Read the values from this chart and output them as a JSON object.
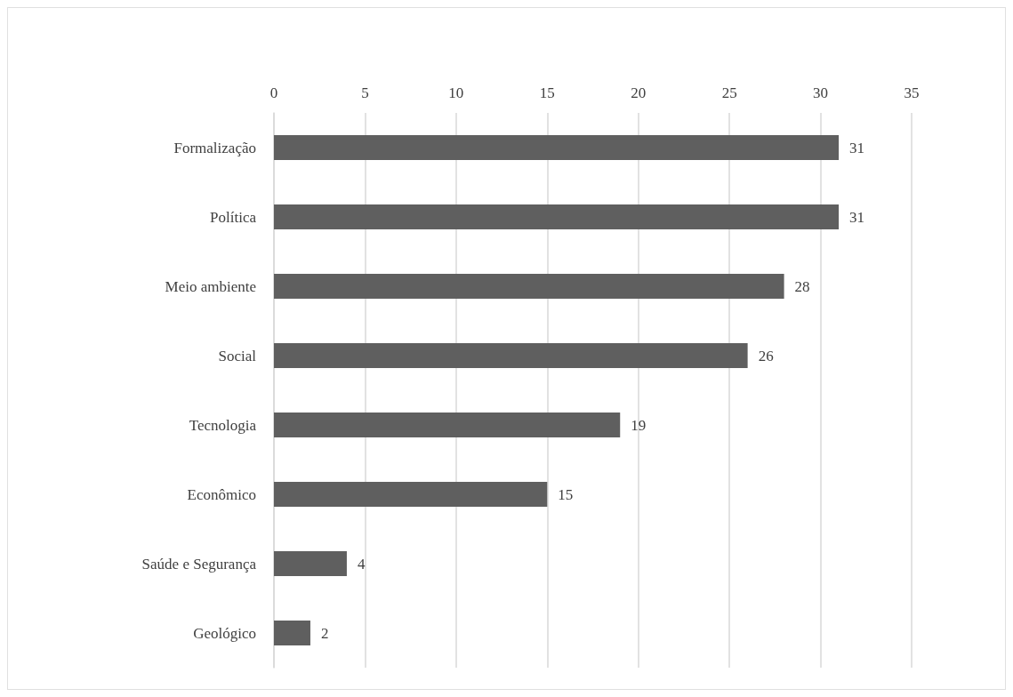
{
  "chart_data": {
    "type": "bar",
    "orientation": "horizontal",
    "categories": [
      "Formalização",
      "Política",
      "Meio ambiente",
      "Social",
      "Tecnologia",
      "Econômico",
      "Saúde e Segurança",
      "Geológico"
    ],
    "values": [
      31,
      31,
      28,
      26,
      19,
      15,
      4,
      2
    ],
    "color": "#5f5f5f",
    "xlim": [
      0,
      35
    ],
    "xticks": [
      0,
      5,
      10,
      15,
      20,
      25,
      30,
      35
    ],
    "grid": "x",
    "data_labels": true
  }
}
